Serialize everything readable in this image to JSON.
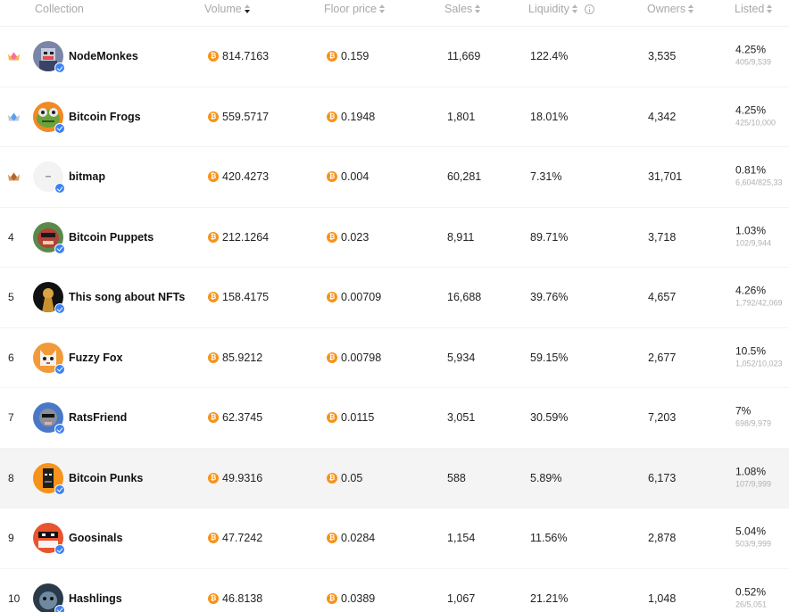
{
  "header": {
    "collection": "Collection",
    "volume": "Volume",
    "floor_price": "Floor price",
    "sales": "Sales",
    "liquidity": "Liquidity",
    "owners": "Owners",
    "listed": "Listed"
  },
  "colors": {
    "btc": "#f7931a",
    "verified": "#3c82f6",
    "highlight_row": "#f4f4f4"
  },
  "rows": [
    {
      "rank": "1",
      "rank_icon": "gold-crown-medal-icon",
      "name": "NodeMonkes",
      "volume": "814.7163",
      "floor": "0.159",
      "sales": "11,669",
      "liquidity": "122.4%",
      "owners": "3,535",
      "listed_pct": "4.25%",
      "listed_count": "405/9,539"
    },
    {
      "rank": "2",
      "rank_icon": "silver-crown-medal-icon",
      "name": "Bitcoin Frogs",
      "volume": "559.5717",
      "floor": "0.1948",
      "sales": "1,801",
      "liquidity": "18.01%",
      "owners": "4,342",
      "listed_pct": "4.25%",
      "listed_count": "425/10,000"
    },
    {
      "rank": "3",
      "rank_icon": "bronze-crown-medal-icon",
      "name": "bitmap",
      "volume": "420.4273",
      "floor": "0.004",
      "sales": "60,281",
      "liquidity": "7.31%",
      "owners": "31,701",
      "listed_pct": "0.81%",
      "listed_count": "6,604/825,33"
    },
    {
      "rank": "4",
      "name": "Bitcoin Puppets",
      "volume": "212.1264",
      "floor": "0.023",
      "sales": "8,911",
      "liquidity": "89.71%",
      "owners": "3,718",
      "listed_pct": "1.03%",
      "listed_count": "102/9,944"
    },
    {
      "rank": "5",
      "name": "This song about NFTs",
      "volume": "158.4175",
      "floor": "0.00709",
      "sales": "16,688",
      "liquidity": "39.76%",
      "owners": "4,657",
      "listed_pct": "4.26%",
      "listed_count": "1,792/42,069"
    },
    {
      "rank": "6",
      "name": "Fuzzy Fox",
      "volume": "85.9212",
      "floor": "0.00798",
      "sales": "5,934",
      "liquidity": "59.15%",
      "owners": "2,677",
      "listed_pct": "10.5%",
      "listed_count": "1,052/10,023"
    },
    {
      "rank": "7",
      "name": "RatsFriend",
      "volume": "62.3745",
      "floor": "0.0115",
      "sales": "3,051",
      "liquidity": "30.59%",
      "owners": "7,203",
      "listed_pct": "7%",
      "listed_count": "698/9,979"
    },
    {
      "rank": "8",
      "name": "Bitcoin Punks",
      "volume": "49.9316",
      "floor": "0.05",
      "sales": "588",
      "liquidity": "5.89%",
      "owners": "6,173",
      "listed_pct": "1.08%",
      "listed_count": "107/9,999"
    },
    {
      "rank": "9",
      "name": "Goosinals",
      "volume": "47.7242",
      "floor": "0.0284",
      "sales": "1,154",
      "liquidity": "11.56%",
      "owners": "2,878",
      "listed_pct": "5.04%",
      "listed_count": "503/9,999"
    },
    {
      "rank": "10",
      "name": "Hashlings",
      "volume": "46.8138",
      "floor": "0.0389",
      "sales": "1,067",
      "liquidity": "21.21%",
      "owners": "1,048",
      "listed_pct": "0.52%",
      "listed_count": "26/5,051"
    }
  ]
}
